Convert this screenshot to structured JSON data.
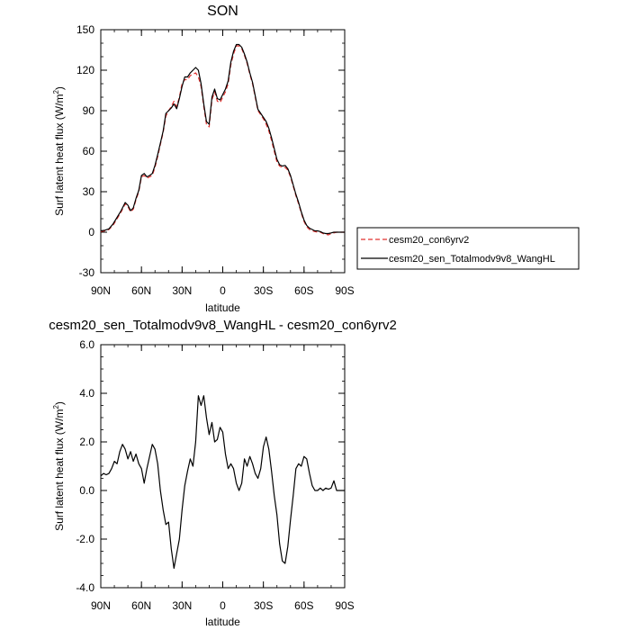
{
  "chart_data": [
    {
      "type": "line",
      "title": "SON",
      "xlabel": "latitude",
      "ylabel_main": "Surf latent heat flux (W/m",
      "ylabel_sup": "2",
      "ylabel_close": ")",
      "xlim": [
        90,
        -90
      ],
      "ylim": [
        -30,
        150
      ],
      "xticks": [
        90,
        60,
        30,
        0,
        -30,
        -60,
        -90
      ],
      "xtick_labels": [
        "90N",
        "60N",
        "30N",
        "0",
        "30S",
        "60S",
        "90S"
      ],
      "yticks": [
        -30,
        0,
        30,
        60,
        90,
        120,
        150
      ],
      "ytick_labels": [
        "-30",
        "0",
        "30",
        "60",
        "90",
        "120",
        "150"
      ],
      "legend": "right",
      "series": [
        {
          "name": "cesm20_con6yrv2",
          "color": "#e0302e",
          "dash": "dashed",
          "x": [
            90,
            87,
            84,
            81,
            78,
            75,
            72,
            70,
            68,
            66,
            64,
            62,
            60,
            58,
            56,
            54,
            52,
            50,
            48,
            46,
            44,
            42,
            40,
            38,
            36,
            34,
            32,
            30,
            28,
            26,
            24,
            22,
            20,
            18,
            16,
            14,
            12,
            10,
            8,
            6,
            4,
            2,
            0,
            -2,
            -4,
            -6,
            -8,
            -10,
            -12,
            -14,
            -16,
            -18,
            -20,
            -22,
            -24,
            -26,
            -28,
            -30,
            -32,
            -34,
            -36,
            -38,
            -40,
            -42,
            -44,
            -46,
            -48,
            -50,
            -52,
            -54,
            -56,
            -58,
            -60,
            -62,
            -64,
            -66,
            -68,
            -70,
            -72,
            -74,
            -76,
            -78,
            -80,
            -82,
            -84,
            -86,
            -88,
            -90
          ],
          "y": [
            0.5,
            1,
            2,
            5,
            10,
            15,
            21,
            19,
            15,
            17,
            24,
            30,
            41,
            42,
            40,
            41,
            42,
            48,
            56,
            65,
            74,
            86,
            90,
            93,
            97,
            93,
            100,
            110,
            113,
            113,
            116,
            117,
            118,
            115,
            108,
            93,
            80,
            78,
            98,
            104,
            97,
            96,
            100,
            104,
            110,
            124,
            132,
            138,
            138,
            136,
            131,
            125,
            117,
            110,
            100,
            90,
            87,
            84,
            80,
            75,
            68,
            60,
            52,
            49,
            48,
            48,
            46,
            41,
            34,
            27,
            21,
            14,
            8,
            4,
            2,
            1,
            0.5,
            0,
            0,
            -1,
            -1.5,
            -2,
            -1,
            -0.5,
            0,
            0,
            0,
            0
          ]
        },
        {
          "name": "cesm20_sen_Totalmodv9v8_WangHL",
          "color": "#000000",
          "dash": "solid",
          "x": [
            90,
            87,
            84,
            81,
            78,
            75,
            72,
            70,
            68,
            66,
            64,
            62,
            60,
            58,
            56,
            54,
            52,
            50,
            48,
            46,
            44,
            42,
            40,
            38,
            36,
            34,
            32,
            30,
            28,
            26,
            24,
            22,
            20,
            18,
            16,
            14,
            12,
            10,
            8,
            6,
            4,
            2,
            0,
            -2,
            -4,
            -6,
            -8,
            -10,
            -12,
            -14,
            -16,
            -18,
            -20,
            -22,
            -24,
            -26,
            -28,
            -30,
            -32,
            -34,
            -36,
            -38,
            -40,
            -42,
            -44,
            -46,
            -48,
            -50,
            -52,
            -54,
            -56,
            -58,
            -60,
            -62,
            -64,
            -66,
            -68,
            -70,
            -72,
            -74,
            -76,
            -78,
            -80,
            -82,
            -84,
            -86,
            -88,
            -90
          ],
          "y": [
            1,
            1.5,
            2.5,
            6,
            11,
            16,
            22,
            20,
            16,
            18,
            25,
            31,
            42,
            43.5,
            41,
            42,
            43.5,
            49.5,
            57.5,
            66,
            75,
            88,
            90,
            92,
            95,
            91.5,
            99,
            108,
            115,
            115,
            118,
            120,
            122,
            120,
            110,
            95,
            82,
            80,
            100,
            106,
            99,
            98,
            102,
            106,
            112,
            126,
            134,
            139,
            139,
            137,
            132,
            126,
            118,
            111,
            101,
            91,
            88,
            85,
            82,
            77,
            70,
            62,
            54,
            50,
            49,
            49.5,
            47,
            42,
            35,
            28,
            22,
            15,
            9,
            5,
            3,
            2,
            1,
            1,
            0.5,
            -0.5,
            -1,
            -1,
            -0.5,
            0,
            0,
            0,
            0,
            0
          ]
        }
      ]
    },
    {
      "type": "line",
      "title": "cesm20_sen_Totalmodv9v8_WangHL - cesm20_con6yrv2",
      "xlabel": "latitude",
      "ylabel_main": "Surf latent heat flux (W/m",
      "ylabel_sup": "2",
      "ylabel_close": ")",
      "xlim": [
        90,
        -90
      ],
      "ylim": [
        -4.0,
        6.0
      ],
      "xticks": [
        90,
        60,
        30,
        0,
        -30,
        -60,
        -90
      ],
      "xtick_labels": [
        "90N",
        "60N",
        "30N",
        "0",
        "30S",
        "60S",
        "90S"
      ],
      "yticks": [
        -4,
        -2,
        0,
        2,
        4,
        6
      ],
      "ytick_labels": [
        "-4.0",
        "-2.0",
        "0.0",
        "2.0",
        "4.0",
        "6.0"
      ],
      "series": [
        {
          "color": "#000000",
          "dash": "solid",
          "x": [
            90,
            88,
            86,
            84,
            82,
            80,
            78,
            76,
            74,
            72,
            70,
            68,
            66,
            64,
            62,
            60,
            58,
            56,
            54,
            52,
            50,
            48,
            46,
            44,
            42,
            40,
            38,
            36,
            34,
            32,
            30,
            28,
            26,
            24,
            22,
            20,
            18,
            16,
            14,
            12,
            10,
            8,
            6,
            4,
            2,
            0,
            -2,
            -4,
            -6,
            -8,
            -10,
            -12,
            -14,
            -16,
            -18,
            -20,
            -22,
            -24,
            -26,
            -28,
            -30,
            -32,
            -34,
            -36,
            -38,
            -40,
            -42,
            -44,
            -46,
            -48,
            -50,
            -52,
            -54,
            -56,
            -58,
            -60,
            -62,
            -64,
            -66,
            -68,
            -70,
            -72,
            -74,
            -76,
            -78,
            -80,
            -82,
            -84,
            -86,
            -88,
            -90
          ],
          "y": [
            0.6,
            0.7,
            0.65,
            0.7,
            0.9,
            1.2,
            1.1,
            1.6,
            1.9,
            1.7,
            1.3,
            1.6,
            1.2,
            1.5,
            1.1,
            0.9,
            0.3,
            0.9,
            1.4,
            1.9,
            1.7,
            1.1,
            0.0,
            -0.8,
            -1.4,
            -1.3,
            -2.4,
            -3.2,
            -2.6,
            -2.0,
            -0.8,
            0.2,
            0.8,
            1.3,
            1.0,
            2.0,
            3.9,
            3.5,
            3.9,
            3.0,
            2.3,
            2.8,
            2.0,
            2.1,
            2.6,
            2.4,
            1.5,
            0.9,
            1.1,
            0.9,
            0.3,
            0.0,
            0.3,
            1.3,
            1.0,
            1.4,
            1.1,
            0.7,
            0.5,
            0.9,
            1.8,
            2.2,
            1.7,
            0.8,
            -0.2,
            -1.0,
            -2.2,
            -2.9,
            -3.0,
            -2.3,
            -1.2,
            -0.2,
            0.9,
            1.1,
            1.0,
            1.4,
            1.3,
            0.7,
            0.2,
            0.0,
            0.0,
            0.1,
            0.0,
            0.1,
            0.05,
            0.1,
            0.4,
            0.0,
            0.0,
            0.0,
            0.0
          ]
        }
      ]
    }
  ]
}
